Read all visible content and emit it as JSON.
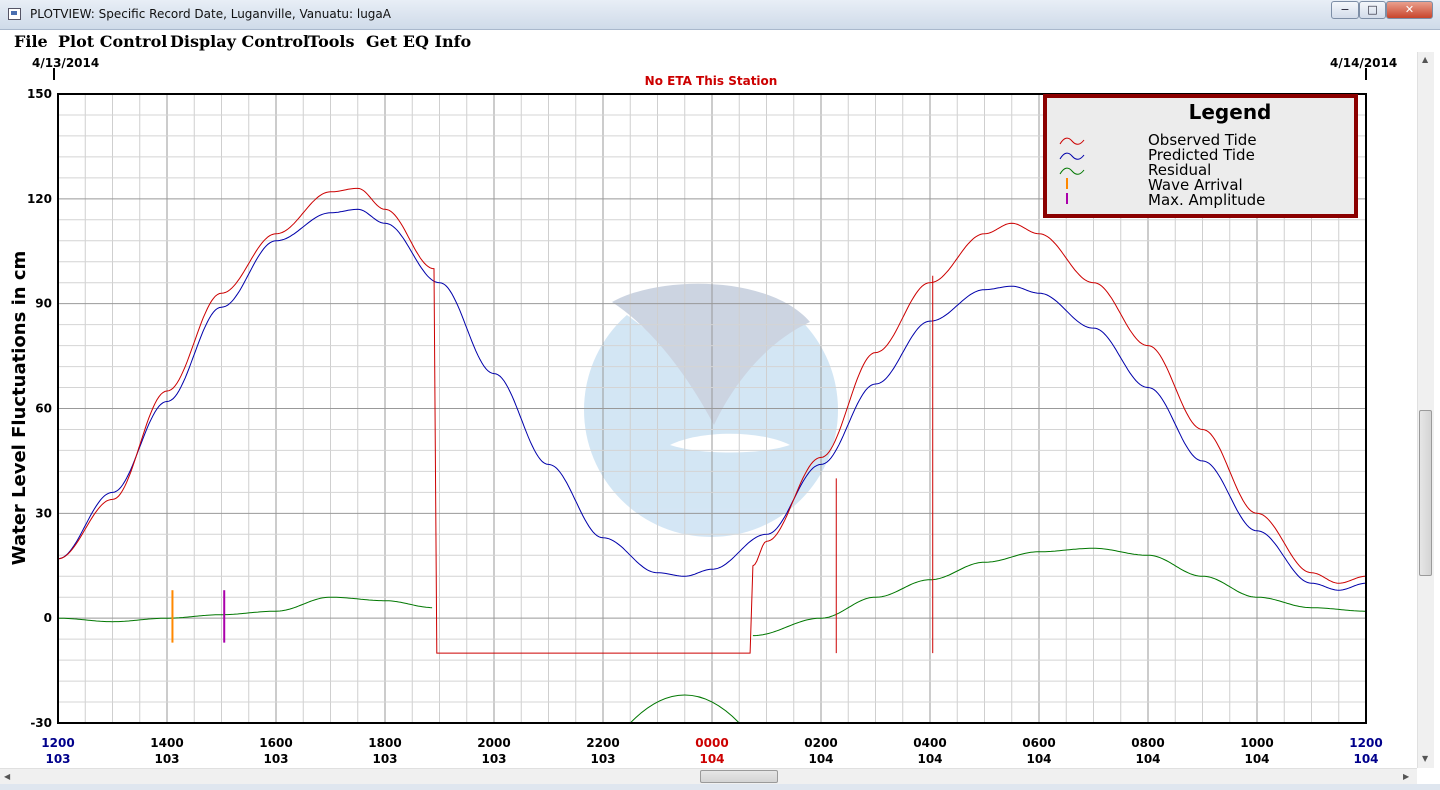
{
  "window": {
    "title": "PLOTVIEW: Specific Record Date, Luganville, Vanuatu: lugaA",
    "minimize_label": "−",
    "maximize_label": "□",
    "close_label": "✕"
  },
  "menu": {
    "items": [
      "File",
      "Plot Control",
      "Display Control",
      "Tools",
      "Get EQ Info"
    ]
  },
  "colors": {
    "observed": "#cc0000",
    "predicted": "#0000aa",
    "residual": "#007700",
    "wave_arrival": "#ff8800",
    "max_amplitude": "#aa00aa",
    "eta_text": "#cc0000",
    "legend_border": "#8b0000"
  },
  "chart_data": {
    "type": "line",
    "date_left": "4/13/2014",
    "date_right": "4/14/2014",
    "subtitle": "No ETA This Station",
    "ylabel": "Water Level Fluctuations in cm",
    "ylim": [
      -30,
      150
    ],
    "yticks": [
      -30,
      0,
      30,
      60,
      90,
      120,
      150
    ],
    "grid": true,
    "xlim": [
      12,
      36
    ],
    "x_unit": "hours since 1200 of day 103",
    "xtick_labels": [
      {
        "x": 12,
        "time": "1200",
        "day": "103",
        "color": "#00008b"
      },
      {
        "x": 14,
        "time": "1400",
        "day": "103",
        "color": "#000000"
      },
      {
        "x": 16,
        "time": "1600",
        "day": "103",
        "color": "#000000"
      },
      {
        "x": 18,
        "time": "1800",
        "day": "103",
        "color": "#000000"
      },
      {
        "x": 20,
        "time": "2000",
        "day": "103",
        "color": "#000000"
      },
      {
        "x": 22,
        "time": "2200",
        "day": "103",
        "color": "#000000"
      },
      {
        "x": 24,
        "time": "0000",
        "day": "104",
        "color": "#cc0000"
      },
      {
        "x": 26,
        "time": "0200",
        "day": "104",
        "color": "#000000"
      },
      {
        "x": 28,
        "time": "0400",
        "day": "104",
        "color": "#000000"
      },
      {
        "x": 30,
        "time": "0600",
        "day": "104",
        "color": "#000000"
      },
      {
        "x": 32,
        "time": "0800",
        "day": "104",
        "color": "#000000"
      },
      {
        "x": 34,
        "time": "1000",
        "day": "104",
        "color": "#000000"
      },
      {
        "x": 36,
        "time": "1200",
        "day": "104",
        "color": "#00008b"
      }
    ],
    "legend": {
      "title": "Legend",
      "position": "top-right",
      "entries": [
        "Observed Tide",
        "Predicted Tide",
        "Residual",
        "Wave Arrival",
        "Max. Amplitude"
      ]
    },
    "series": [
      {
        "name": "Predicted Tide",
        "x": [
          12,
          13,
          14,
          15,
          16,
          17,
          17.5,
          18,
          19,
          20,
          21,
          22,
          23,
          23.5,
          24,
          25,
          26,
          27,
          28,
          29,
          29.5,
          30,
          31,
          32,
          33,
          34,
          35,
          35.5,
          36
        ],
        "values": [
          17,
          36,
          62,
          89,
          108,
          116,
          117,
          113,
          96,
          70,
          44,
          23,
          13,
          12,
          14,
          24,
          44,
          67,
          85,
          94,
          95,
          93,
          83,
          66,
          45,
          25,
          10,
          8,
          10
        ]
      },
      {
        "name": "Observed Tide",
        "x": [
          12,
          13,
          14,
          15,
          16,
          17,
          17.5,
          18,
          18.9,
          18.95,
          24.7,
          24.75,
          25,
          26,
          27,
          28,
          29,
          29.5,
          30,
          31,
          32,
          33,
          34,
          35,
          35.5,
          36
        ],
        "values": [
          17,
          34,
          65,
          93,
          110,
          122,
          123,
          117,
          100,
          -10,
          -10,
          15,
          22,
          46,
          76,
          96,
          110,
          113,
          110,
          96,
          78,
          54,
          30,
          13,
          10,
          12
        ]
      },
      {
        "name": "Residual",
        "x": [
          12,
          13,
          14,
          15,
          16,
          17,
          18,
          18.9,
          18.95,
          24.7,
          24.75,
          26,
          27,
          28,
          29,
          30,
          31,
          32,
          33,
          34,
          35,
          36
        ],
        "values": [
          0,
          -1,
          0,
          1,
          2,
          6,
          5,
          3,
          null,
          null,
          -5,
          0,
          6,
          11,
          16,
          19,
          20,
          18,
          12,
          6,
          3,
          2
        ]
      }
    ],
    "residual_gap_arc": {
      "x": [
        22.5,
        23.5,
        24.5
      ],
      "values": [
        -30,
        -22,
        -30
      ]
    },
    "spikes": [
      {
        "x": 26.28,
        "from": 40,
        "to": -10,
        "series": "Observed Tide"
      },
      {
        "x": 28.05,
        "from": 98,
        "to": -10,
        "series": "Observed Tide"
      }
    ],
    "markers": [
      {
        "name": "Wave Arrival",
        "x": 14.1,
        "from": 8,
        "to": -7
      },
      {
        "name": "Max. Amplitude",
        "x": 15.05,
        "from": 8,
        "to": -7
      }
    ]
  }
}
